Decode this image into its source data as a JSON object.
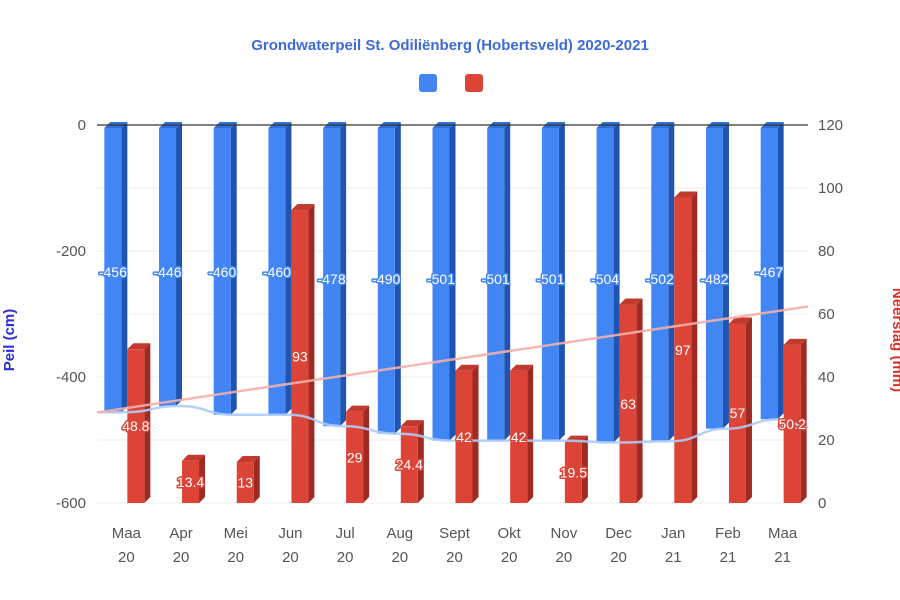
{
  "chart_data": {
    "type": "bar",
    "title": "Grondwaterpeil St. Odiliënberg (Hobertsveld) 2020-2021",
    "categories": [
      [
        "Maa",
        "20"
      ],
      [
        "Apr",
        "20"
      ],
      [
        "Mei",
        "20"
      ],
      [
        "Jun",
        "20"
      ],
      [
        "Jul",
        "20"
      ],
      [
        "Aug",
        "20"
      ],
      [
        "Sept",
        "20"
      ],
      [
        "Okt",
        "20"
      ],
      [
        "Nov",
        "20"
      ],
      [
        "Dec",
        "20"
      ],
      [
        "Jan",
        "21"
      ],
      [
        "Feb",
        "21"
      ],
      [
        "Maa",
        "21"
      ]
    ],
    "y_left": {
      "label": "Peil (cm)",
      "min": -600,
      "max": 0,
      "ticks": [
        "0",
        "-200",
        "-400",
        "-600"
      ]
    },
    "y_right": {
      "label": "Neerslag (mm)",
      "min": 0,
      "max": 120,
      "ticks": [
        "120",
        "100",
        "80",
        "60",
        "40",
        "20",
        "0"
      ]
    },
    "series": [
      {
        "axis": "left",
        "color": "#4285f4",
        "values": [
          -456,
          -446,
          -460,
          -460,
          -478,
          -490,
          -501,
          -501,
          -501,
          -504,
          -502,
          -482,
          -467
        ],
        "labels": [
          "-456",
          "-446",
          "-460",
          "-460",
          "-478",
          "-490",
          "-501",
          "-501",
          "-501",
          "-504",
          "-502",
          "-482",
          "-467"
        ]
      },
      {
        "axis": "right",
        "color": "#db4437",
        "values": [
          48.8,
          13.4,
          13,
          93,
          29,
          24.4,
          42,
          42,
          19.5,
          63,
          97,
          57,
          50.2
        ],
        "labels": [
          "48.8",
          "13.4",
          "13",
          "93",
          "29",
          "24.4",
          "42",
          "42",
          "19.5",
          "63",
          "97",
          "57",
          "50.2"
        ]
      }
    ],
    "trendlines": [
      {
        "axis": "left",
        "color": "#aecbfa",
        "type": "polynomial"
      },
      {
        "axis": "right",
        "color": "#f4b0ab",
        "type": "linear"
      }
    ],
    "legend": "top-center"
  }
}
